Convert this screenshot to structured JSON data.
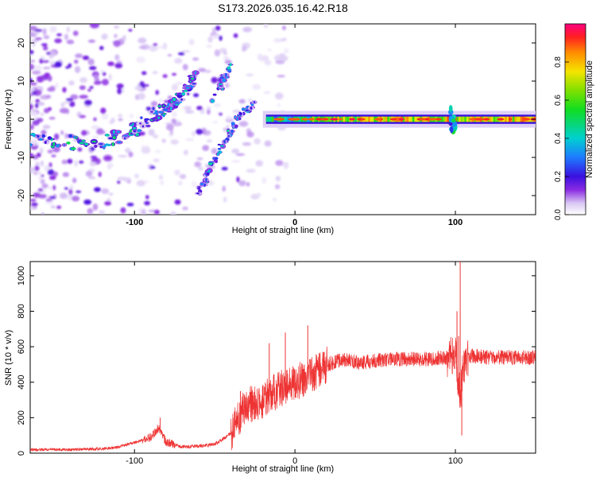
{
  "title": "S173.2026.035.16.42.R18",
  "chart_data": [
    {
      "type": "heatmap",
      "name": "spectrogram",
      "xlabel": "Height of straight line (km)",
      "ylabel": "Frequency (Hz)",
      "xlim": [
        -165,
        150
      ],
      "ylim": [
        -25,
        25
      ],
      "xticks": [
        -100,
        0,
        100
      ],
      "yticks": [
        -20,
        -10,
        0,
        10,
        20
      ],
      "colorbar": {
        "label": "Normalized spectral amplitude",
        "range": [
          0,
          1
        ],
        "ticks": [
          0.0,
          0.2,
          0.4,
          0.6,
          0.8
        ]
      },
      "ridges": [
        {
          "name": "main-carrier",
          "points": [
            [
              -165,
              -5
            ],
            [
              -140,
              -6
            ],
            [
              -120,
              -6
            ],
            [
              -105,
              -4
            ],
            [
              -95,
              -1
            ],
            [
              -85,
              2
            ],
            [
              -75,
              4
            ],
            [
              -68,
              8
            ],
            [
              -62,
              11
            ]
          ]
        },
        {
          "name": "upper-branch",
          "points": [
            [
              -52,
              5
            ],
            [
              -45,
              10
            ],
            [
              -40,
              13
            ]
          ]
        },
        {
          "name": "lower-branch",
          "points": [
            [
              -60,
              -19
            ],
            [
              -55,
              -15
            ],
            [
              -48,
              -9
            ],
            [
              -40,
              -3
            ],
            [
              -33,
              2
            ],
            [
              -25,
              4
            ]
          ]
        },
        {
          "name": "flat-carrier",
          "points": [
            [
              -20,
              0
            ],
            [
              0,
              0
            ],
            [
              50,
              0
            ],
            [
              100,
              0
            ],
            [
              150,
              0
            ]
          ]
        }
      ]
    },
    {
      "type": "line",
      "name": "snr",
      "xlabel": "Height of straight line (km)",
      "ylabel": "SNR (10 * v/v)",
      "xlim": [
        -165,
        150
      ],
      "ylim": [
        0,
        1080
      ],
      "xticks": [
        -100,
        0,
        100
      ],
      "yticks": [
        0,
        200,
        400,
        600,
        800,
        1000
      ],
      "color": "#ee3333",
      "series": [
        {
          "name": "SNR",
          "x": [
            -165,
            -140,
            -120,
            -110,
            -100,
            -90,
            -85,
            -80,
            -70,
            -60,
            -50,
            -40,
            -35,
            -30,
            -20,
            -10,
            0,
            10,
            20,
            30,
            40,
            60,
            80,
            95,
            100,
            103,
            105,
            110,
            120,
            150
          ],
          "y": [
            20,
            20,
            25,
            35,
            60,
            90,
            140,
            60,
            35,
            40,
            50,
            110,
            200,
            270,
            300,
            360,
            400,
            440,
            500,
            530,
            510,
            530,
            530,
            540,
            560,
            300,
            500,
            550,
            540,
            540
          ],
          "spikes": [
            [
              -84,
              200
            ],
            [
              -34,
              350
            ],
            [
              -16,
              620
            ],
            [
              -6,
              680
            ],
            [
              8,
              720
            ],
            [
              101,
              800
            ],
            [
              103,
              1080
            ],
            [
              104,
              100
            ],
            [
              102,
              660
            ]
          ]
        }
      ]
    }
  ]
}
